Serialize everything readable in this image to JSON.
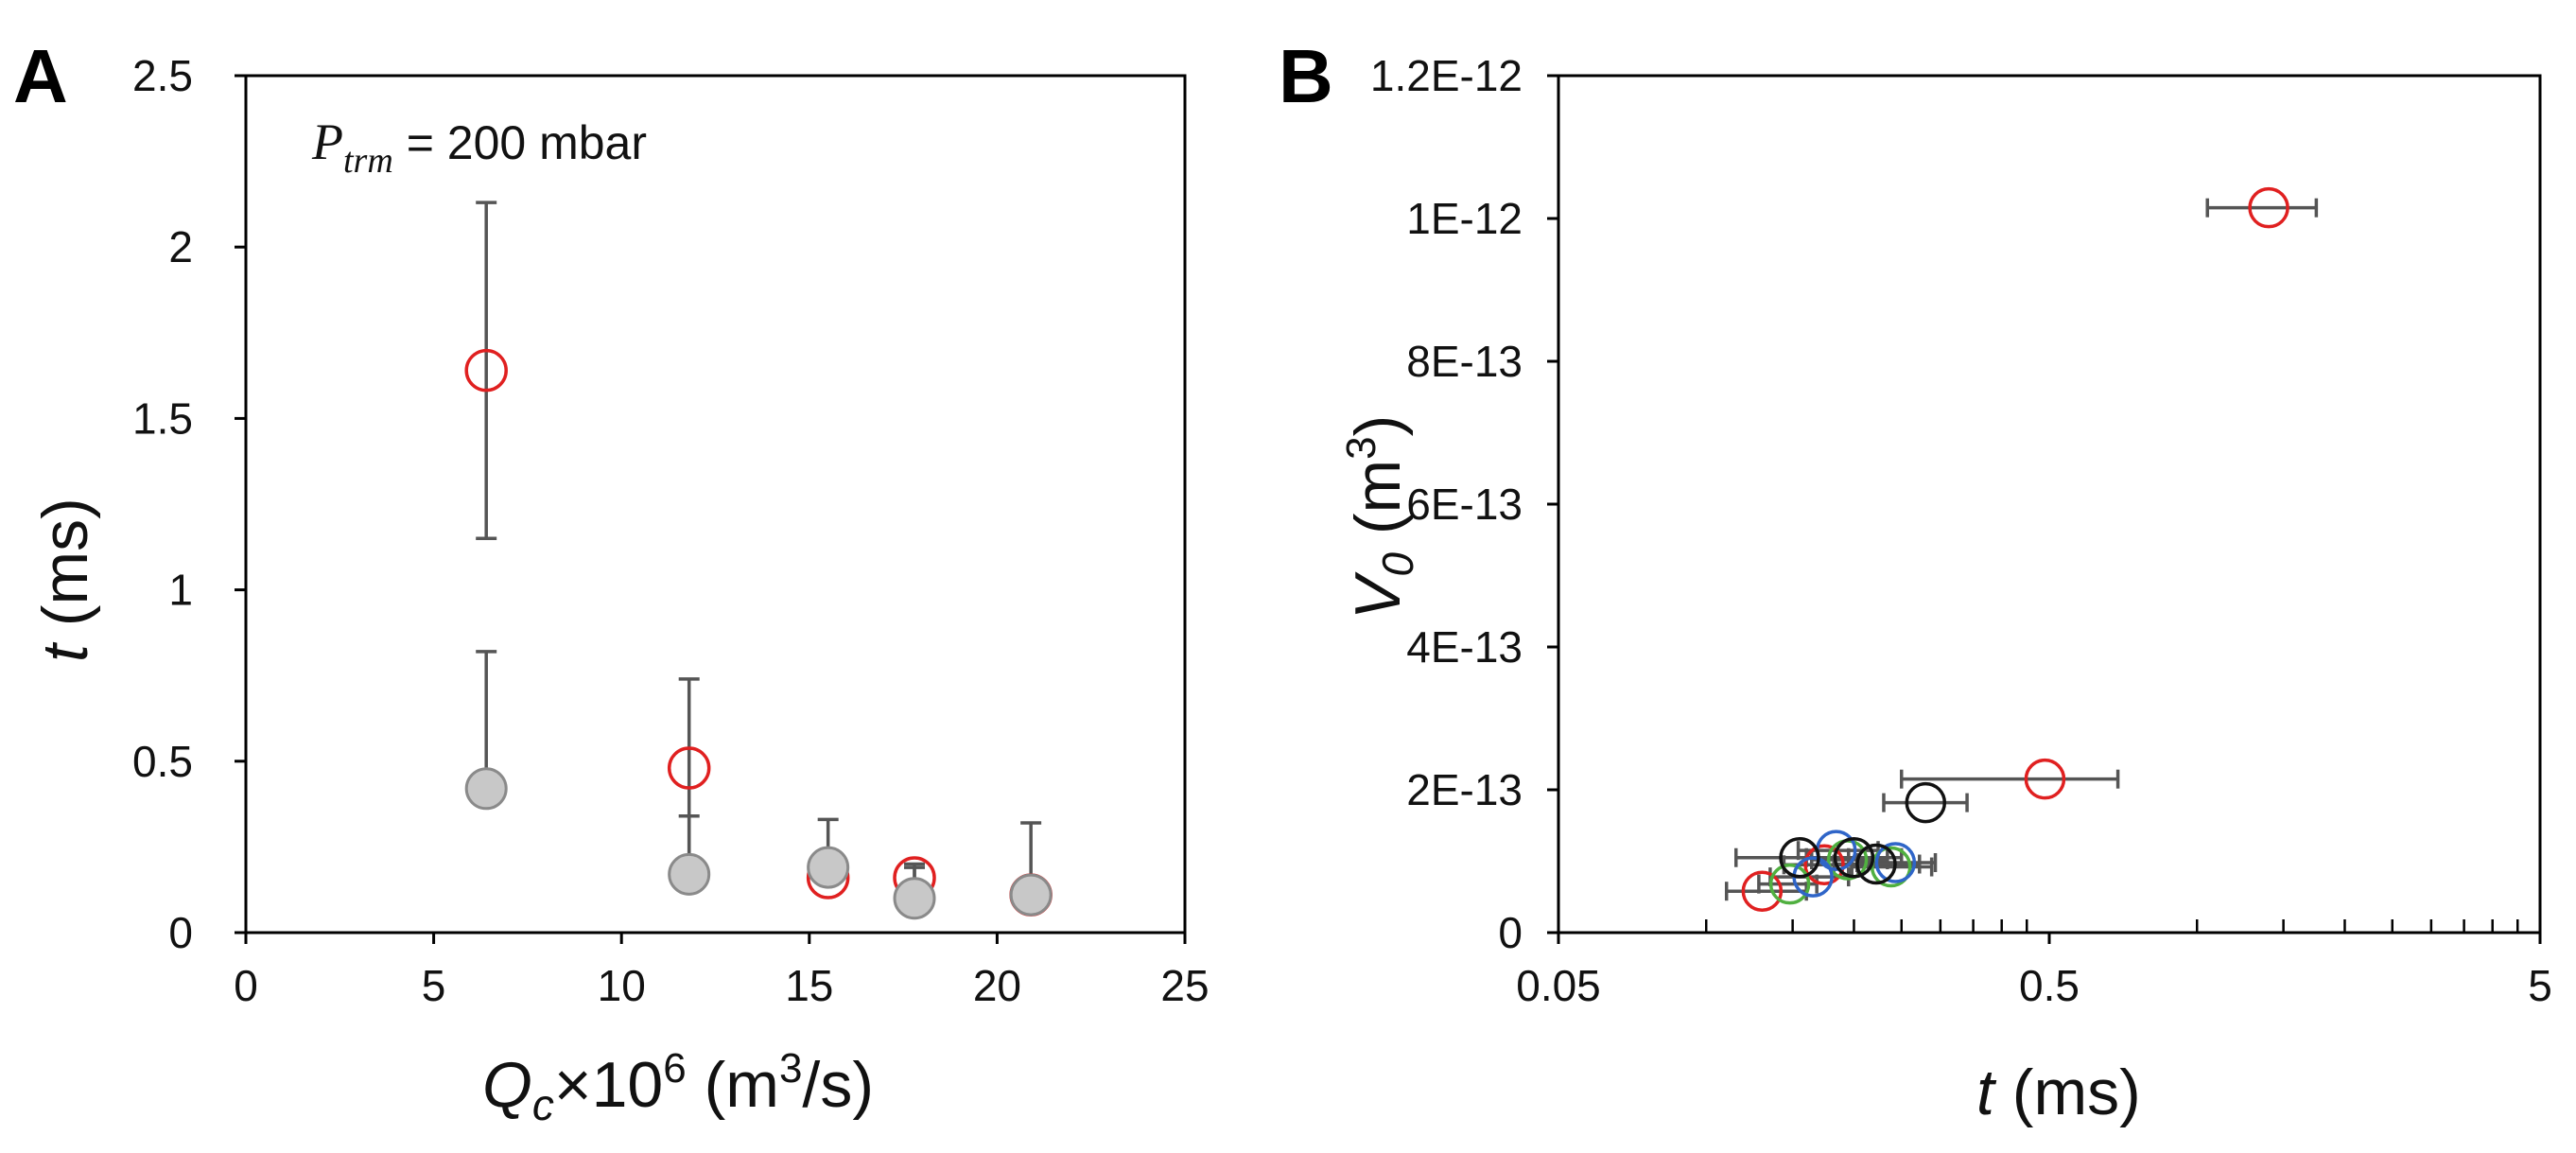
{
  "chart_data": [
    {
      "type": "scatter",
      "panel": "A",
      "title": "",
      "annotation": {
        "symbol": "P",
        "subscript": "trm",
        "text": " = 200 mbar"
      },
      "xlabel": {
        "symbol": "Q",
        "subscript": "c",
        "multiplier": "×10",
        "exponent": "6",
        "unit_open": " (m",
        "unit_exp": "3",
        "unit_close": "/s)"
      },
      "ylabel": {
        "symbol": "t",
        "unit": " (ms)"
      },
      "xlim": [
        0,
        25
      ],
      "ylim": [
        0,
        2.5
      ],
      "xticks": [
        "0",
        "5",
        "10",
        "15",
        "20",
        "25"
      ],
      "yticks": [
        "0",
        "0.5",
        "1",
        "1.5",
        "2",
        "2.5"
      ],
      "grid": false,
      "series": [
        {
          "name": "red-open",
          "marker": "open-circle",
          "color": "#e02020",
          "points": [
            {
              "x": 6.4,
              "y": 1.64,
              "err_hi": 0.49,
              "err_lo": 0.49
            },
            {
              "x": 11.8,
              "y": 0.48,
              "err_hi": 0.26,
              "err_lo": 0.26
            },
            {
              "x": 15.5,
              "y": 0.16,
              "err_hi": 0.0,
              "err_lo": 0.0
            },
            {
              "x": 17.8,
              "y": 0.16,
              "err_hi": 0.04,
              "err_lo": 0.04
            },
            {
              "x": 20.9,
              "y": 0.11,
              "err_hi": 0.0,
              "err_lo": 0.0
            }
          ]
        },
        {
          "name": "gray-filled",
          "marker": "filled-circle",
          "color": "#c8c8c8",
          "points": [
            {
              "x": 6.4,
              "y": 0.42,
              "err_hi": 0.4
            },
            {
              "x": 11.8,
              "y": 0.17,
              "err_hi": 0.17
            },
            {
              "x": 15.5,
              "y": 0.19,
              "err_hi": 0.14
            },
            {
              "x": 17.8,
              "y": 0.1,
              "err_hi": 0.09
            },
            {
              "x": 20.9,
              "y": 0.11,
              "err_hi": 0.21
            }
          ]
        }
      ]
    },
    {
      "type": "scatter",
      "panel": "B",
      "title": "",
      "xlabel": {
        "symbol": "t",
        "unit": " (ms)"
      },
      "ylabel": {
        "symbol": "V",
        "subscript": "0",
        "unit_open": " (m",
        "unit_exp": "3",
        "unit_close": ")"
      },
      "xscale": "log",
      "xlim": [
        0.05,
        5
      ],
      "ylim": [
        0,
        1.2e-12
      ],
      "xticks": [
        "0.05",
        "0.5",
        "5"
      ],
      "yticks": [
        "0",
        "2E-13",
        "4E-13",
        "6E-13",
        "8E-13",
        "1E-12",
        "1.2E-12"
      ],
      "grid": false,
      "series": [
        {
          "name": "red",
          "marker": "open-circle",
          "color": "#e02020",
          "points": [
            {
              "x": 1.4,
              "y": 1.015e-12,
              "xerr_lo": 0.35,
              "xerr_hi": 0.35
            },
            {
              "x": 0.49,
              "y": 2.15e-13,
              "xerr_lo": 0.24,
              "xerr_hi": 0.2
            },
            {
              "x": 0.13,
              "y": 5.8e-14,
              "xerr_lo": 0.02,
              "xerr_hi": 0.03
            },
            {
              "x": 0.174,
              "y": 9.5e-14,
              "xerr_lo": 0.03,
              "xerr_hi": 0.03
            }
          ]
        },
        {
          "name": "green",
          "marker": "open-circle",
          "color": "#50b040",
          "points": [
            {
              "x": 0.148,
              "y": 6.8e-14,
              "xerr_lo": 0.02,
              "xerr_hi": 0.02
            },
            {
              "x": 0.194,
              "y": 1.02e-13,
              "xerr_lo": 0.03,
              "xerr_hi": 0.04
            },
            {
              "x": 0.238,
              "y": 9.2e-14,
              "xerr_lo": 0.04,
              "xerr_hi": 0.05
            }
          ]
        },
        {
          "name": "blue",
          "marker": "open-circle",
          "color": "#2f65c8",
          "points": [
            {
              "x": 0.165,
              "y": 7.8e-14,
              "xerr_lo": 0.03,
              "xerr_hi": 0.03
            },
            {
              "x": 0.184,
              "y": 1.15e-13,
              "xerr_lo": 0.03,
              "xerr_hi": 0.04
            },
            {
              "x": 0.243,
              "y": 9.8e-14,
              "xerr_lo": 0.04,
              "xerr_hi": 0.05
            }
          ]
        },
        {
          "name": "black",
          "marker": "open-circle",
          "color": "#111111",
          "points": [
            {
              "x": 0.28,
              "y": 1.82e-13,
              "xerr_lo": 0.05,
              "xerr_hi": 0.06
            },
            {
              "x": 0.155,
              "y": 1.05e-13,
              "xerr_lo": 0.04,
              "xerr_hi": 0.04
            },
            {
              "x": 0.2,
              "y": 1.05e-13,
              "xerr_lo": 0.04,
              "xerr_hi": 0.05
            },
            {
              "x": 0.222,
              "y": 9.6e-14,
              "xerr_lo": 0.04,
              "xerr_hi": 0.05
            }
          ]
        }
      ]
    }
  ]
}
